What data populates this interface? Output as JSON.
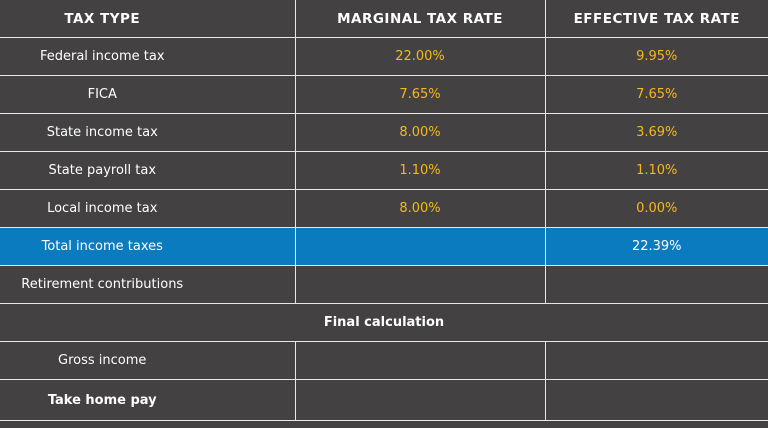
{
  "table": {
    "header": [
      "TAX TYPE",
      "MARGINAL TAX RATE",
      "EFFECTIVE TAX RATE"
    ],
    "rows": [
      [
        "Federal income tax",
        "22.00%",
        "9.95%"
      ],
      [
        "FICA",
        "7.65%",
        "7.65%"
      ],
      [
        "State income tax",
        "8.00%",
        "3.69%"
      ],
      [
        "State payroll tax",
        "1.10%",
        "1.10%"
      ],
      [
        "Local income tax",
        "8.00%",
        "0.00%"
      ]
    ],
    "total": {
      "label": "Total income taxes",
      "effective": "22.39%"
    },
    "retirement": "Retirement contributions",
    "section": "Final calculation",
    "gross_income": "Gross income",
    "take_home_pay": "Take home pay"
  }
}
